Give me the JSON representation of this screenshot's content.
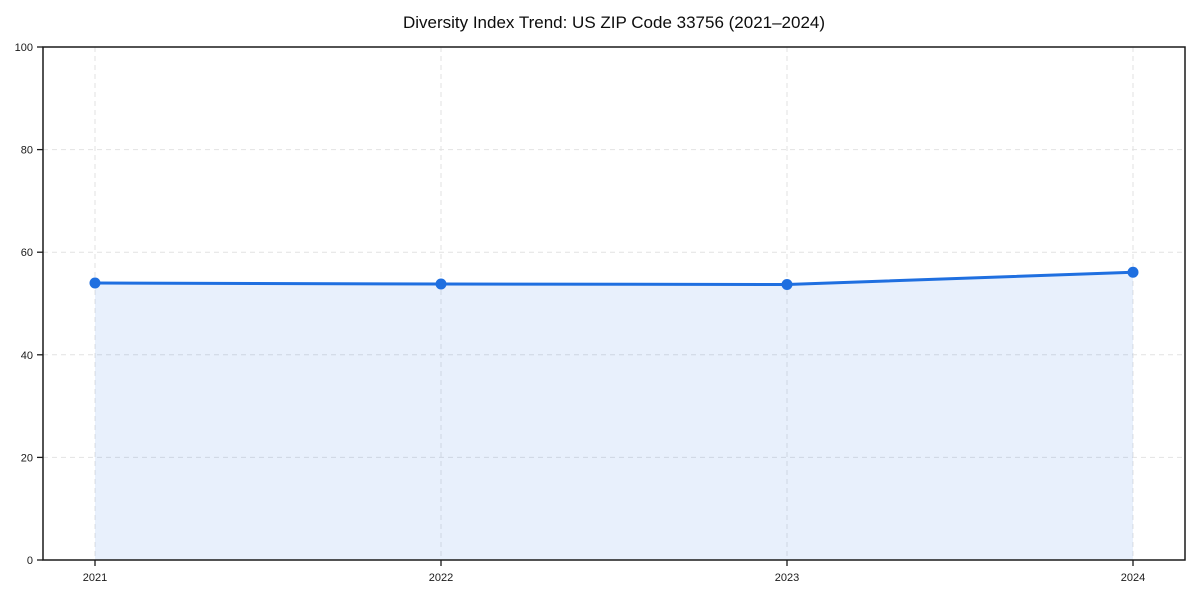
{
  "chart_data": {
    "type": "line",
    "title": "Diversity Index Trend: US ZIP Code 33756 (2021–2024)",
    "x": [
      "2021",
      "2022",
      "2023",
      "2024"
    ],
    "values": [
      54.0,
      53.8,
      53.7,
      56.1
    ],
    "xlabel": "",
    "ylabel": "",
    "ylim": [
      0,
      100
    ],
    "yticks": [
      0,
      20,
      40,
      60,
      80,
      100
    ],
    "grid": "on",
    "grid_style": "dashed",
    "legend": "none",
    "area_fill": true,
    "markers": true,
    "colors": {
      "line": "#1f6fe0",
      "marker": "#1f6fe0",
      "area_fill": "rgba(31,111,224,0.10)",
      "grid": "#e2e2e2",
      "frame": "#1a1a1a",
      "tick_label": "#1a1a1a",
      "title": "#0d0d0d",
      "background": "#ffffff"
    }
  }
}
